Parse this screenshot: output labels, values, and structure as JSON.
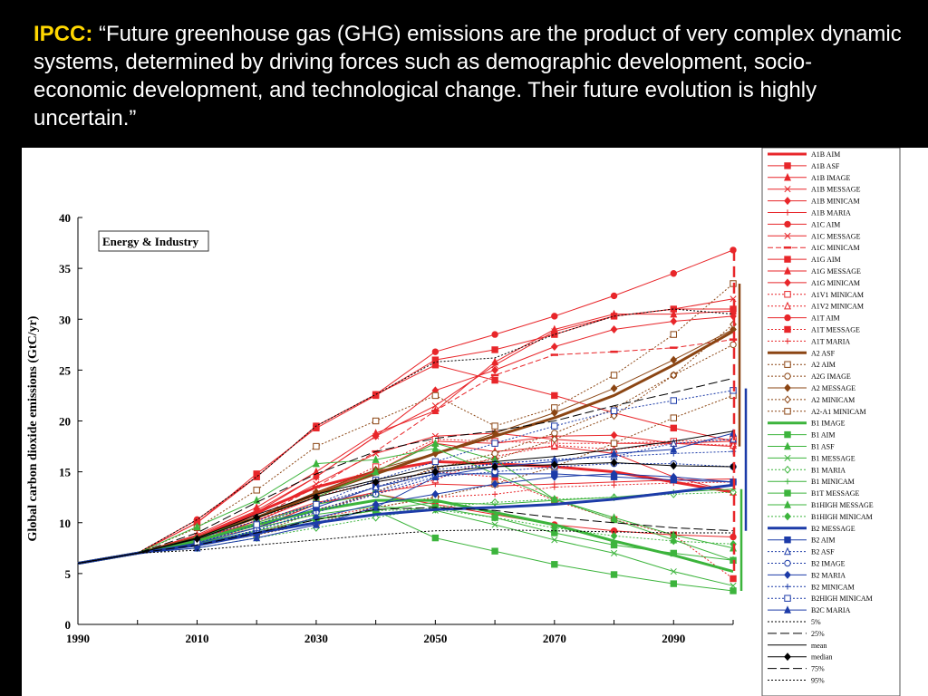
{
  "header": {
    "lead": "IPCC:",
    "open_quote": " “",
    "quote": "Future greenhouse gas (GHG) emissions are the product of very complex dynamic systems, determined by driving forces such as demographic development, socio-economic development, and technological change. Their future evolution is highly uncertain.",
    "close_quote": "”"
  },
  "colors": {
    "A1": "#e8262a",
    "A2": "#8b4513",
    "B1": "#3cb43c",
    "B2": "#1c3ba8",
    "stats": "#000000"
  },
  "chart_data": {
    "type": "line",
    "title": "Energy & Industry",
    "ylabel": "Global carbon dioxide emissions (GtC/yr)",
    "xlabel": "",
    "xlim": [
      1990,
      2100
    ],
    "ylim": [
      0,
      40
    ],
    "xticks": [
      1990,
      2010,
      2030,
      2050,
      2070,
      2090
    ],
    "yticks": [
      0,
      5,
      10,
      15,
      20,
      25,
      30,
      35,
      40
    ],
    "x": [
      1990,
      2000,
      2010,
      2020,
      2030,
      2040,
      2050,
      2060,
      2070,
      2080,
      2090,
      2100
    ],
    "series": [
      {
        "name": "A1B AIM",
        "group": "A1",
        "style": "solid",
        "marker": "none",
        "width": 3,
        "values": [
          6,
          7,
          8.5,
          11,
          13.5,
          15,
          16,
          15.8,
          15.5,
          15,
          14,
          13
        ]
      },
      {
        "name": "A1B ASF",
        "group": "A1",
        "style": "solid",
        "marker": "square",
        "width": 1,
        "values": [
          6,
          7,
          10,
          14.5,
          19.5,
          22.6,
          25.5,
          24,
          22.5,
          20.8,
          19.3,
          18
        ]
      },
      {
        "name": "A1B IMAGE",
        "group": "A1",
        "style": "solid",
        "marker": "triangle",
        "width": 1,
        "values": [
          6,
          7,
          8.4,
          10.5,
          13,
          15,
          17.8,
          17,
          17.5,
          16.8,
          14.5,
          13
        ]
      },
      {
        "name": "A1B MESSAGE",
        "group": "A1",
        "style": "solid",
        "marker": "x",
        "width": 1,
        "values": [
          6,
          7,
          8.3,
          10.8,
          13.8,
          16.8,
          18.5,
          18.8,
          18.2,
          17.8,
          17.8,
          18
        ]
      },
      {
        "name": "A1B MINICAM",
        "group": "A1",
        "style": "solid",
        "marker": "diamond",
        "width": 1,
        "values": [
          6,
          7,
          8.2,
          10.2,
          12.5,
          15,
          18,
          17.8,
          18.5,
          18.6,
          17.8,
          17.5
        ]
      },
      {
        "name": "A1B MARIA",
        "group": "A1",
        "style": "solid",
        "marker": "plus",
        "width": 1,
        "values": [
          6,
          7,
          8,
          9.5,
          11.8,
          13,
          13.8,
          13.6,
          13.8,
          14,
          14.2,
          14.3
        ]
      },
      {
        "name": "A1C AIM",
        "group": "A1",
        "style": "solid",
        "marker": "circle",
        "width": 1,
        "values": [
          6,
          7,
          10.3,
          14.5,
          19.5,
          22.6,
          26.8,
          28.5,
          30.3,
          32.3,
          34.5,
          36.8
        ]
      },
      {
        "name": "A1C MESSAGE",
        "group": "A1",
        "style": "solid",
        "marker": "x",
        "width": 1,
        "values": [
          6,
          7,
          8.7,
          11.2,
          14.5,
          18.5,
          21.5,
          25.5,
          28.8,
          30.3,
          31,
          32
        ]
      },
      {
        "name": "A1C MINICAM",
        "group": "A1",
        "style": "dash",
        "marker": "dash",
        "width": 1,
        "values": [
          6,
          7,
          8.5,
          10.5,
          13.5,
          17,
          21,
          24.5,
          26.5,
          26.8,
          27.2,
          28
        ]
      },
      {
        "name": "A1G AIM",
        "group": "A1",
        "style": "solid",
        "marker": "square",
        "width": 1,
        "values": [
          6,
          7,
          10,
          14.8,
          19.3,
          22.5,
          26,
          27,
          28.5,
          30.3,
          31,
          31
        ]
      },
      {
        "name": "A1G MESSAGE",
        "group": "A1",
        "style": "solid",
        "marker": "triangle",
        "width": 1,
        "values": [
          6,
          7,
          8.8,
          11.5,
          15,
          18.8,
          21,
          25.8,
          29,
          30.5,
          30.5,
          30.8
        ]
      },
      {
        "name": "A1G MINICAM",
        "group": "A1",
        "style": "solid",
        "marker": "diamond",
        "width": 1,
        "values": [
          6,
          7,
          8.6,
          11,
          14.5,
          18.5,
          23,
          25,
          27.3,
          29,
          29.8,
          30.3
        ]
      },
      {
        "name": "A1V1 MINICAM",
        "group": "A1",
        "style": "dot",
        "marker": "square-open",
        "width": 1,
        "values": [
          6,
          7,
          8.4,
          10.2,
          12.8,
          15.5,
          18.2,
          18,
          17.8,
          17.8,
          18,
          18.2
        ]
      },
      {
        "name": "A1V2 MINICAM",
        "group": "A1",
        "style": "dot",
        "marker": "triangle-open",
        "width": 1,
        "values": [
          6,
          7,
          8.2,
          9.5,
          11.3,
          12.8,
          14.2,
          16.5,
          17.6,
          17.2,
          17.8,
          17.6
        ]
      },
      {
        "name": "A1T AIM",
        "group": "A1",
        "style": "solid",
        "marker": "circle",
        "width": 1,
        "values": [
          6,
          7,
          8.5,
          10,
          12,
          12.8,
          11.8,
          10.8,
          9.8,
          9.2,
          8.8,
          8.6
        ]
      },
      {
        "name": "A1T MESSAGE",
        "group": "A1",
        "style": "dot",
        "marker": "square",
        "width": 1,
        "values": [
          6,
          7,
          8.4,
          10.2,
          12.6,
          14,
          15,
          14.5,
          12.2,
          10.3,
          8.8,
          4.5
        ]
      },
      {
        "name": "A1T MARIA",
        "group": "A1",
        "style": "dot",
        "marker": "plus",
        "width": 1,
        "values": [
          6,
          7,
          7.8,
          9,
          10.5,
          11.5,
          12.5,
          12.8,
          13.5,
          13.7,
          13.9,
          14
        ]
      },
      {
        "name": "A2 ASF",
        "group": "A2",
        "style": "solid",
        "marker": "none",
        "width": 3,
        "values": [
          6,
          7,
          8.5,
          10.5,
          12.8,
          14.8,
          16.8,
          18.5,
          20.3,
          22.5,
          25.5,
          28.8
        ]
      },
      {
        "name": "A2 AIM",
        "group": "A2",
        "style": "dot",
        "marker": "square-open",
        "width": 1,
        "values": [
          6,
          7,
          9.5,
          13.2,
          17.5,
          20,
          22.5,
          19.5,
          21.3,
          24.5,
          28.5,
          33.5
        ]
      },
      {
        "name": "A2G IMAGE",
        "group": "A2",
        "style": "dot",
        "marker": "circle-open",
        "width": 1,
        "values": [
          6,
          7,
          8.2,
          9.8,
          11.8,
          13.5,
          15.3,
          16.8,
          18.8,
          21.2,
          24.5,
          27.5
        ]
      },
      {
        "name": "A2 MESSAGE",
        "group": "A2",
        "style": "solid",
        "marker": "diamond",
        "width": 1,
        "values": [
          6,
          7,
          8.3,
          10.5,
          13,
          15.2,
          16.8,
          18.8,
          20.8,
          23.2,
          26,
          29
        ]
      },
      {
        "name": "A2 MINICAM",
        "group": "A2",
        "style": "dot",
        "marker": "diamond-open",
        "width": 1,
        "values": [
          6,
          7,
          7.8,
          9,
          11,
          13,
          15.5,
          16.2,
          18.2,
          20.5,
          24.5,
          29.5
        ]
      },
      {
        "name": "A2-A1 MINICAM",
        "group": "A2",
        "style": "dot",
        "marker": "square-open",
        "width": 1,
        "values": [
          6,
          7,
          7.8,
          8.8,
          10,
          11.5,
          12.5,
          13.8,
          15.5,
          17.8,
          20.3,
          22.5
        ]
      },
      {
        "name": "B1 IMAGE",
        "group": "B1",
        "style": "solid",
        "marker": "none",
        "width": 3,
        "values": [
          6,
          7,
          8.2,
          9.8,
          11.2,
          12.2,
          12.2,
          11,
          9.8,
          8.2,
          6.8,
          5.2
        ]
      },
      {
        "name": "B1 AIM",
        "group": "B1",
        "style": "solid",
        "marker": "square",
        "width": 1,
        "values": [
          6,
          7,
          8,
          9.2,
          10.4,
          11.2,
          8.5,
          7.2,
          5.9,
          4.9,
          4,
          3.3
        ]
      },
      {
        "name": "B1 ASF",
        "group": "B1",
        "style": "solid",
        "marker": "triangle",
        "width": 1,
        "values": [
          6,
          7,
          9.6,
          12.2,
          15.8,
          16.2,
          17.3,
          14.8,
          12.3,
          10.3,
          8.3,
          6.3
        ]
      },
      {
        "name": "B1 MESSAGE",
        "group": "B1",
        "style": "solid",
        "marker": "x",
        "width": 1,
        "values": [
          6,
          7,
          8,
          9.5,
          10.8,
          11.6,
          11.2,
          9.8,
          8.3,
          7,
          5.2,
          3.8
        ]
      },
      {
        "name": "B1 MARIA",
        "group": "B1",
        "style": "dot",
        "marker": "diamond-open",
        "width": 1,
        "values": [
          6,
          7,
          7.5,
          8.5,
          9.5,
          10.5,
          11.5,
          12,
          12.3,
          12.5,
          12.8,
          13
        ]
      },
      {
        "name": "B1 MINICAM",
        "group": "B1",
        "style": "solid",
        "marker": "plus",
        "width": 1,
        "values": [
          6,
          7,
          8,
          9,
          10.3,
          11.2,
          12,
          11.8,
          12.2,
          12.5,
          13,
          13.3
        ]
      },
      {
        "name": "B1T MESSAGE",
        "group": "B1",
        "style": "solid",
        "marker": "square",
        "width": 1,
        "values": [
          6,
          7,
          8.3,
          10,
          11.8,
          12.8,
          11.5,
          10.5,
          9,
          7.8,
          7,
          6.3
        ]
      },
      {
        "name": "B1HIGH MESSAGE",
        "group": "B1",
        "style": "solid",
        "marker": "triangle",
        "width": 1,
        "values": [
          6,
          7,
          8.5,
          10.5,
          12.5,
          15,
          17.8,
          16.2,
          12.3,
          10.5,
          8.8,
          7.5
        ]
      },
      {
        "name": "B1HIGH MINICAM",
        "group": "B1",
        "style": "dot",
        "marker": "diamond",
        "width": 1,
        "values": [
          6,
          7,
          7.8,
          9,
          10.3,
          11.2,
          11.3,
          10.5,
          9.5,
          8.7,
          8.2,
          7.9
        ]
      },
      {
        "name": "B2 MESSAGE",
        "group": "B2",
        "style": "solid",
        "marker": "none",
        "width": 3,
        "values": [
          6,
          7,
          7.8,
          9,
          10,
          10.8,
          11.3,
          11.5,
          11.8,
          12.3,
          13,
          13.7
        ]
      },
      {
        "name": "B2 AIM",
        "group": "B2",
        "style": "solid",
        "marker": "square",
        "width": 1,
        "values": [
          6,
          7,
          8,
          9.5,
          11.5,
          13.5,
          14.8,
          14.8,
          14.8,
          14.5,
          14.2,
          14
        ]
      },
      {
        "name": "B2 ASF",
        "group": "B2",
        "style": "dot",
        "marker": "triangle-open",
        "width": 1,
        "values": [
          6,
          7,
          8.4,
          10.2,
          11.8,
          13.5,
          15.2,
          15.8,
          16.2,
          16.5,
          17.8,
          18.2
        ]
      },
      {
        "name": "B2 IMAGE",
        "group": "B2",
        "style": "dot",
        "marker": "circle-open",
        "width": 1,
        "values": [
          6,
          7,
          7.8,
          9.3,
          11,
          12.8,
          14.5,
          15,
          15.5,
          15.8,
          15.8,
          15.5
        ]
      },
      {
        "name": "B2 MARIA",
        "group": "B2",
        "style": "solid",
        "marker": "diamond",
        "width": 1,
        "values": [
          6,
          7,
          7.7,
          8.8,
          10.5,
          11.8,
          12.8,
          13.8,
          14.5,
          14.8,
          14.5,
          14
        ]
      },
      {
        "name": "B2 MINICAM",
        "group": "B2",
        "style": "dot",
        "marker": "plus",
        "width": 1,
        "values": [
          6,
          7,
          7.8,
          9.2,
          11.2,
          13,
          14.8,
          15.8,
          16.2,
          16.5,
          16.8,
          17
        ]
      },
      {
        "name": "B2HIGH MINICAM",
        "group": "B2",
        "style": "dot",
        "marker": "square-open",
        "width": 1,
        "values": [
          6,
          7,
          8,
          9.8,
          11.8,
          14.2,
          16,
          17.8,
          19.5,
          21,
          22,
          23
        ]
      },
      {
        "name": "B2C MARIA",
        "group": "B2",
        "style": "solid",
        "marker": "triangle",
        "width": 1,
        "values": [
          6,
          7,
          7.5,
          8.5,
          9.8,
          11.5,
          14.5,
          15.5,
          16,
          16.8,
          17.2,
          18.8
        ]
      },
      {
        "name": "5%",
        "group": "stats",
        "style": "dot",
        "marker": "none",
        "width": 1,
        "values": [
          6,
          7,
          7.3,
          7.8,
          8.3,
          8.8,
          9.2,
          9.3,
          9.2,
          9.1,
          9,
          9
        ]
      },
      {
        "name": "25%",
        "group": "stats",
        "style": "longdash",
        "marker": "none",
        "width": 1,
        "values": [
          6,
          7,
          7.8,
          9,
          10.3,
          11.3,
          11.5,
          11.2,
          10.5,
          10,
          9.5,
          9.2
        ]
      },
      {
        "name": "mean",
        "group": "stats",
        "style": "solid",
        "marker": "none",
        "width": 1,
        "values": [
          6,
          7,
          8.5,
          10.8,
          12.8,
          14.2,
          15.5,
          16,
          16.5,
          17.2,
          18,
          19
        ]
      },
      {
        "name": "median",
        "group": "stats",
        "style": "solid",
        "marker": "diamond",
        "width": 1,
        "values": [
          6,
          7,
          8.4,
          10.5,
          12.5,
          14,
          15,
          15.5,
          15.7,
          15.9,
          15.6,
          15.5
        ]
      },
      {
        "name": "75%",
        "group": "stats",
        "style": "longdash",
        "marker": "none",
        "width": 1,
        "values": [
          6,
          7,
          9,
          12,
          14.8,
          17,
          18.3,
          19,
          20,
          21.5,
          22.8,
          24.2
        ]
      },
      {
        "name": "95%",
        "group": "stats",
        "style": "dot",
        "marker": "none",
        "width": 1,
        "values": [
          6,
          7,
          10.3,
          14.5,
          19.5,
          22.6,
          25.8,
          26.2,
          28.5,
          30.3,
          31,
          30.5
        ]
      }
    ],
    "range_bars": [
      {
        "group": "A1",
        "from": 4.3,
        "to": 36.8,
        "style": "dash"
      },
      {
        "group": "A2",
        "from": 17.5,
        "to": 33.5,
        "style": "solid"
      },
      {
        "group": "B2",
        "from": 9.2,
        "to": 23.2,
        "style": "solid"
      },
      {
        "group": "B1",
        "from": 3.3,
        "to": 13.3,
        "style": "solid"
      }
    ],
    "legend_position": "right"
  }
}
